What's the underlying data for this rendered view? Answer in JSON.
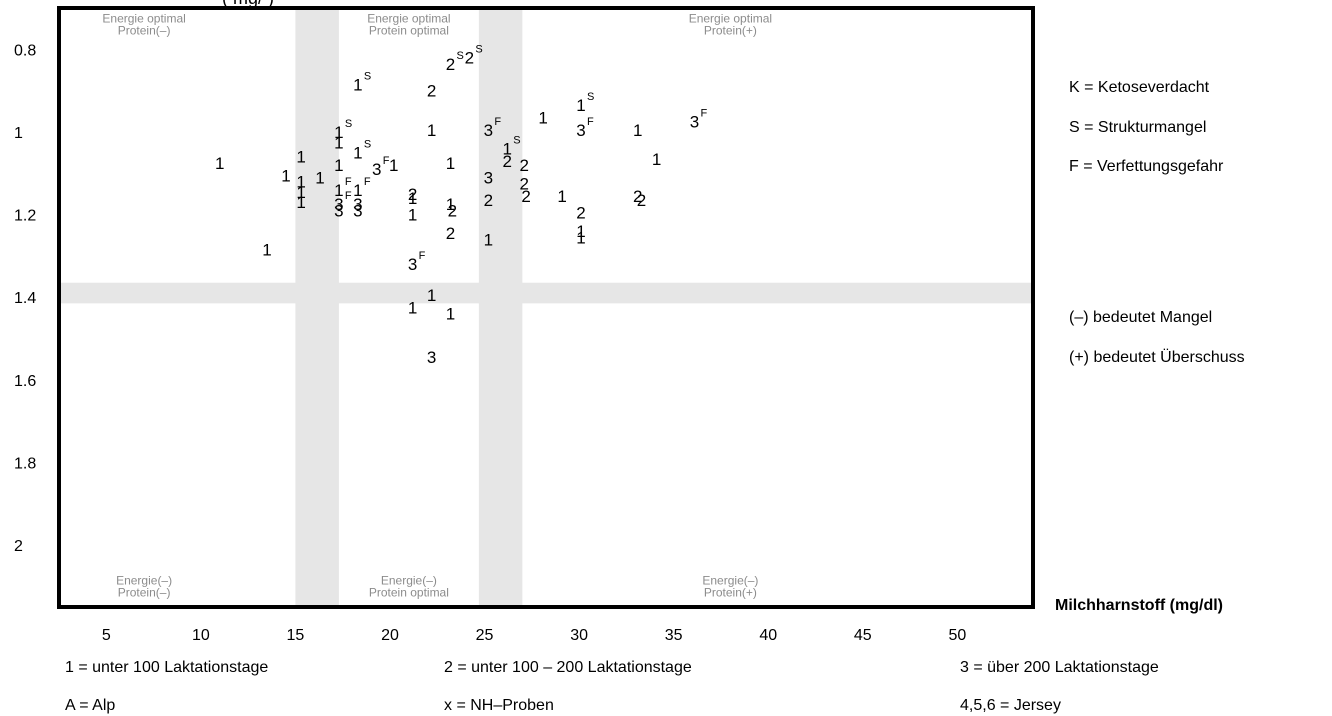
{
  "chart_data": {
    "type": "scatter",
    "title": "",
    "xlabel": "Milchharnstoff (mg/dl)",
    "ylabel": "",
    "xlim": [
      2.5,
      54
    ],
    "ylim": [
      0.7,
      2.15
    ],
    "y_inverted": true,
    "x_ticks": [
      5,
      10,
      15,
      20,
      25,
      30,
      35,
      40,
      45,
      50
    ],
    "x_tick_labels": [
      "5",
      "10",
      "15",
      "20",
      "25",
      "30",
      "35",
      "40",
      "45",
      "50"
    ],
    "y_ticks": [
      0.8,
      1.0,
      1.2,
      1.4,
      1.6,
      1.8,
      2.0
    ],
    "y_tick_labels": [
      "0.8",
      "1",
      "1.2",
      "1.4",
      "1.6",
      "1.8",
      "2"
    ],
    "bands_x": [
      [
        15,
        17.3
      ],
      [
        24.7,
        27
      ]
    ],
    "band_y": [
      1.365,
      1.415
    ],
    "band_color": "#e6e6e6",
    "region_labels": [
      {
        "lines": [
          "Energie optimal",
          "Protein(–)"
        ],
        "x": 7,
        "y": 0.74
      },
      {
        "lines": [
          "Energie optimal",
          "Protein optimal"
        ],
        "x": 21,
        "y": 0.74
      },
      {
        "lines": [
          "Energie optimal",
          "Protein(+)"
        ],
        "x": 38,
        "y": 0.74
      },
      {
        "lines": [
          "Energie(–)",
          "Protein(–)"
        ],
        "x": 7,
        "y": 2.1
      },
      {
        "lines": [
          "Energie(–)",
          "Protein optimal"
        ],
        "x": 21,
        "y": 2.1
      },
      {
        "lines": [
          "Energie(–)",
          "Protein(+)"
        ],
        "x": 38,
        "y": 2.1
      }
    ],
    "points": [
      {
        "x": 11,
        "y": 1.075,
        "label": "1",
        "sup": ""
      },
      {
        "x": 13.5,
        "y": 1.285,
        "label": "1",
        "sup": ""
      },
      {
        "x": 14.5,
        "y": 1.105,
        "label": "1",
        "sup": ""
      },
      {
        "x": 15.3,
        "y": 1.12,
        "label": "1",
        "sup": ""
      },
      {
        "x": 15.3,
        "y": 1.145,
        "label": "1",
        "sup": ""
      },
      {
        "x": 15.3,
        "y": 1.06,
        "label": "1",
        "sup": ""
      },
      {
        "x": 15.3,
        "y": 1.17,
        "label": "1",
        "sup": ""
      },
      {
        "x": 16.3,
        "y": 1.11,
        "label": "1",
        "sup": ""
      },
      {
        "x": 17.3,
        "y": 1.0,
        "label": "1",
        "sup": "S"
      },
      {
        "x": 17.3,
        "y": 1.025,
        "label": "1",
        "sup": ""
      },
      {
        "x": 17.3,
        "y": 1.08,
        "label": "1",
        "sup": ""
      },
      {
        "x": 17.3,
        "y": 1.14,
        "label": "1",
        "sup": "F"
      },
      {
        "x": 17.3,
        "y": 1.175,
        "label": "3",
        "sup": "F"
      },
      {
        "x": 17.3,
        "y": 1.19,
        "label": "3",
        "sup": ""
      },
      {
        "x": 18.3,
        "y": 0.885,
        "label": "1",
        "sup": "S"
      },
      {
        "x": 18.3,
        "y": 1.05,
        "label": "1",
        "sup": "S"
      },
      {
        "x": 18.3,
        "y": 1.14,
        "label": "1",
        "sup": "F"
      },
      {
        "x": 18.3,
        "y": 1.175,
        "label": "3",
        "sup": ""
      },
      {
        "x": 18.3,
        "y": 1.19,
        "label": "3",
        "sup": ""
      },
      {
        "x": 19.3,
        "y": 1.09,
        "label": "3",
        "sup": "F"
      },
      {
        "x": 20.2,
        "y": 1.08,
        "label": "1",
        "sup": ""
      },
      {
        "x": 21.2,
        "y": 1.15,
        "label": "2",
        "sup": ""
      },
      {
        "x": 21.2,
        "y": 1.16,
        "label": "1",
        "sup": ""
      },
      {
        "x": 21.2,
        "y": 1.2,
        "label": "1",
        "sup": ""
      },
      {
        "x": 21.2,
        "y": 1.32,
        "label": "3",
        "sup": "F"
      },
      {
        "x": 21.2,
        "y": 1.425,
        "label": "1",
        "sup": ""
      },
      {
        "x": 22.2,
        "y": 0.9,
        "label": "2",
        "sup": ""
      },
      {
        "x": 22.2,
        "y": 0.995,
        "label": "1",
        "sup": ""
      },
      {
        "x": 22.2,
        "y": 1.395,
        "label": "1",
        "sup": ""
      },
      {
        "x": 22.2,
        "y": 1.545,
        "label": "3",
        "sup": ""
      },
      {
        "x": 23.2,
        "y": 0.835,
        "label": "2",
        "sup": "S"
      },
      {
        "x": 23.2,
        "y": 1.075,
        "label": "1",
        "sup": ""
      },
      {
        "x": 23.2,
        "y": 1.175,
        "label": "1",
        "sup": ""
      },
      {
        "x": 23.3,
        "y": 1.19,
        "label": "2",
        "sup": ""
      },
      {
        "x": 23.2,
        "y": 1.245,
        "label": "2",
        "sup": ""
      },
      {
        "x": 23.2,
        "y": 1.44,
        "label": "1",
        "sup": ""
      },
      {
        "x": 24.2,
        "y": 0.82,
        "label": "2",
        "sup": "S"
      },
      {
        "x": 25.2,
        "y": 0.995,
        "label": "3",
        "sup": "F"
      },
      {
        "x": 25.2,
        "y": 1.11,
        "label": "3",
        "sup": ""
      },
      {
        "x": 25.2,
        "y": 1.165,
        "label": "2",
        "sup": ""
      },
      {
        "x": 25.2,
        "y": 1.26,
        "label": "1",
        "sup": ""
      },
      {
        "x": 26.2,
        "y": 1.04,
        "label": "1",
        "sup": "S"
      },
      {
        "x": 26.2,
        "y": 1.07,
        "label": "2",
        "sup": ""
      },
      {
        "x": 27.1,
        "y": 1.08,
        "label": "2",
        "sup": ""
      },
      {
        "x": 27.1,
        "y": 1.125,
        "label": "2",
        "sup": ""
      },
      {
        "x": 27.2,
        "y": 1.155,
        "label": "2",
        "sup": ""
      },
      {
        "x": 28.1,
        "y": 0.965,
        "label": "1",
        "sup": ""
      },
      {
        "x": 29.1,
        "y": 1.155,
        "label": "1",
        "sup": ""
      },
      {
        "x": 30.1,
        "y": 0.935,
        "label": "1",
        "sup": "S"
      },
      {
        "x": 30.1,
        "y": 0.995,
        "label": "3",
        "sup": "F"
      },
      {
        "x": 30.1,
        "y": 1.195,
        "label": "2",
        "sup": ""
      },
      {
        "x": 30.1,
        "y": 1.24,
        "label": "1",
        "sup": ""
      },
      {
        "x": 30.1,
        "y": 1.255,
        "label": "1",
        "sup": ""
      },
      {
        "x": 33.1,
        "y": 0.995,
        "label": "1",
        "sup": ""
      },
      {
        "x": 33.1,
        "y": 1.155,
        "label": "2",
        "sup": ""
      },
      {
        "x": 33.3,
        "y": 1.165,
        "label": "2",
        "sup": ""
      },
      {
        "x": 34.1,
        "y": 1.065,
        "label": "1",
        "sup": ""
      },
      {
        "x": 36.1,
        "y": 0.975,
        "label": "3",
        "sup": "F"
      }
    ],
    "legend_right": [
      "K = Ketoseverdacht",
      "S = Strukturmangel",
      "F = Verfettungsgefahr",
      "(–) bedeutet Mangel",
      "(+) bedeutet Überschuss"
    ],
    "legend_bottom": [
      "1 = unter 100 Laktationstage",
      "2 = unter 100 – 200 Laktationstage",
      "3 = über 200 Laktationstage",
      "A = Alp",
      "x = NH–Proben",
      "4,5,6 = Jersey"
    ],
    "top_clipped_text": "(        mg/ )"
  }
}
